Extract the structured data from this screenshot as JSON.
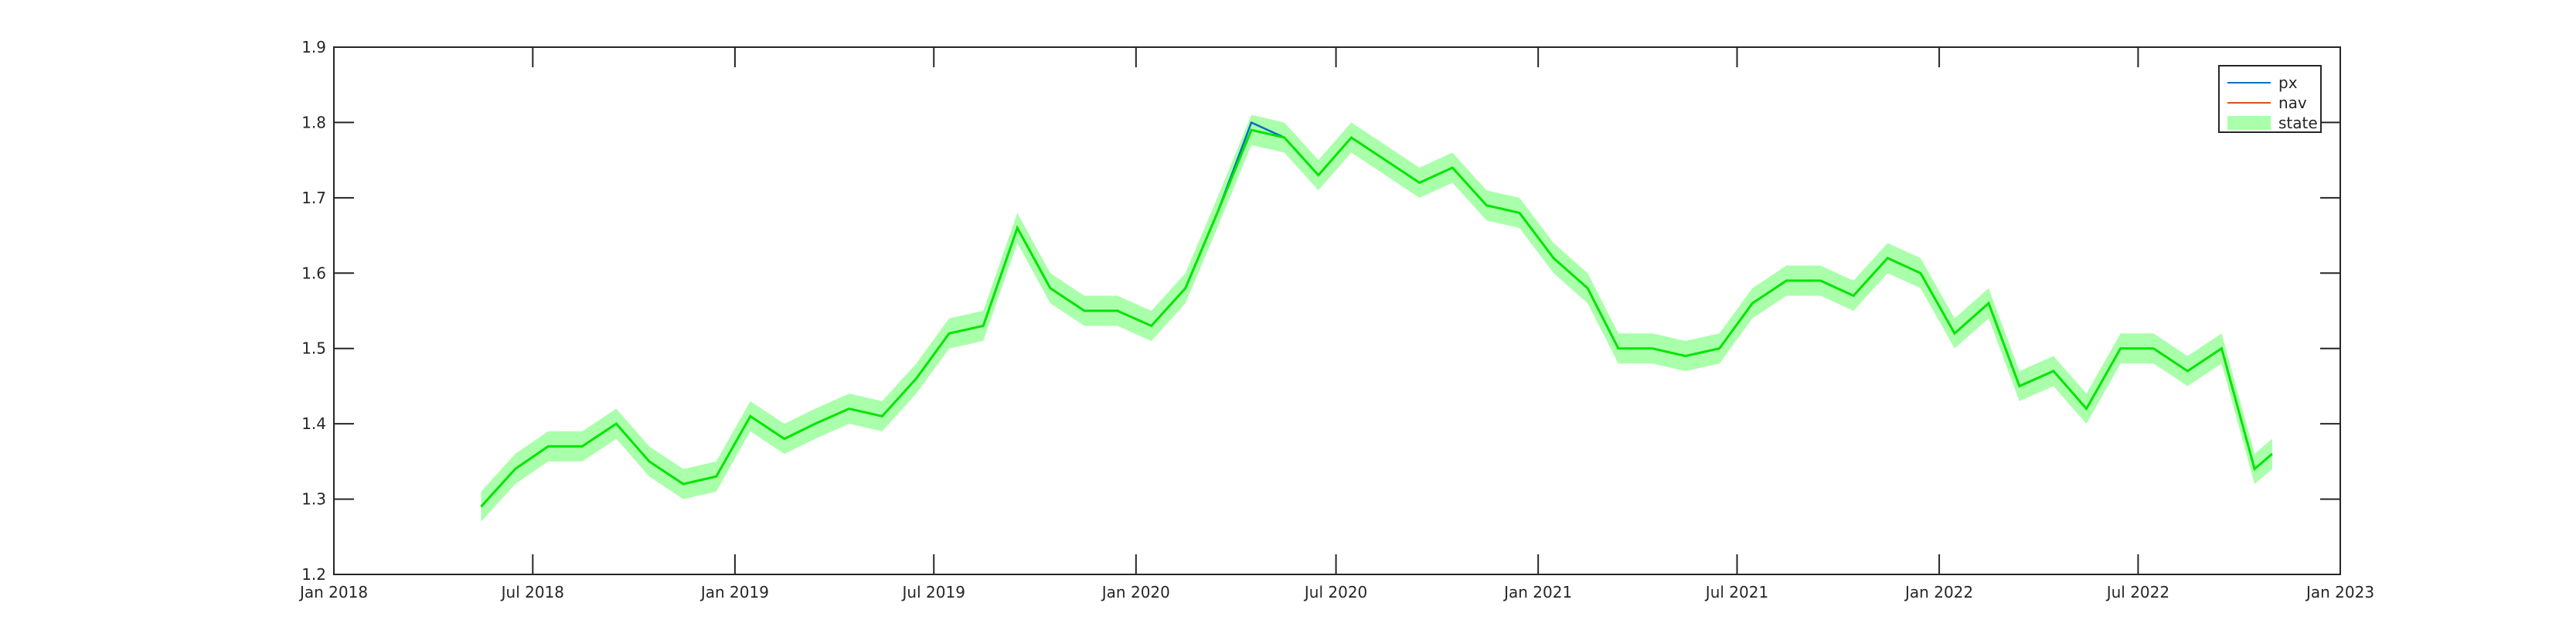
{
  "chart_data": {
    "type": "line",
    "title": "",
    "xlabel": "",
    "ylabel": "",
    "ylim": [
      1.2,
      1.9
    ],
    "xlim": [
      "2018-01-01",
      "2023-01-01"
    ],
    "yticks": [
      1.2,
      1.3,
      1.4,
      1.5,
      1.6,
      1.7,
      1.8,
      1.9
    ],
    "ytick_labels": [
      "1.2",
      "1.3",
      "1.4",
      "1.5",
      "1.6",
      "1.7",
      "1.8",
      "1.9"
    ],
    "xticks": [
      "2018-01-01",
      "2018-07-01",
      "2019-01-01",
      "2019-07-01",
      "2020-01-01",
      "2020-07-01",
      "2021-01-01",
      "2021-07-01",
      "2022-01-01",
      "2022-07-01",
      "2023-01-01"
    ],
    "xtick_labels": [
      "Jan 2018",
      "Jul 2018",
      "Jan 2019",
      "Jul 2019",
      "Jan 2020",
      "Jul 2020",
      "Jan 2021",
      "Jul 2021",
      "Jan 2022",
      "Jul 2022",
      "Jan 2023"
    ],
    "grid": false,
    "legend_position": "top-right",
    "x": [
      "2018-05-15",
      "2018-06-15",
      "2018-07-15",
      "2018-08-15",
      "2018-09-15",
      "2018-10-15",
      "2018-11-15",
      "2018-12-15",
      "2019-01-15",
      "2019-02-15",
      "2019-03-15",
      "2019-04-15",
      "2019-05-15",
      "2019-06-15",
      "2019-07-15",
      "2019-08-15",
      "2019-09-15",
      "2019-10-15",
      "2019-11-15",
      "2019-12-15",
      "2020-01-15",
      "2020-02-15",
      "2020-03-15",
      "2020-04-15",
      "2020-05-15",
      "2020-06-15",
      "2020-07-15",
      "2020-08-15",
      "2020-09-15",
      "2020-10-15",
      "2020-11-15",
      "2020-12-15",
      "2021-01-15",
      "2021-02-15",
      "2021-03-15",
      "2021-04-15",
      "2021-05-15",
      "2021-06-15",
      "2021-07-15",
      "2021-08-15",
      "2021-09-15",
      "2021-10-15",
      "2021-11-15",
      "2021-12-15",
      "2022-01-15",
      "2022-02-15",
      "2022-03-15",
      "2022-04-15",
      "2022-05-15",
      "2022-06-15",
      "2022-07-15",
      "2022-08-15",
      "2022-09-15",
      "2022-10-15",
      "2022-10-31"
    ],
    "series": [
      {
        "name": "px",
        "color": "#0072bd",
        "values": [
          1.29,
          1.34,
          1.37,
          1.37,
          1.4,
          1.35,
          1.32,
          1.33,
          1.41,
          1.38,
          1.4,
          1.42,
          1.41,
          1.46,
          1.52,
          1.53,
          1.66,
          1.58,
          1.55,
          1.55,
          1.53,
          1.58,
          1.68,
          1.8,
          1.78,
          1.73,
          1.78,
          1.75,
          1.72,
          1.74,
          1.69,
          1.68,
          1.62,
          1.58,
          1.5,
          1.5,
          1.49,
          1.5,
          1.56,
          1.59,
          1.59,
          1.57,
          1.62,
          1.6,
          1.52,
          1.56,
          1.45,
          1.47,
          1.42,
          1.5,
          1.5,
          1.47,
          1.5,
          1.34,
          1.36
        ]
      },
      {
        "name": "nav",
        "color": "#d95319",
        "values": [
          1.29,
          1.34,
          1.37,
          1.37,
          1.4,
          1.35,
          1.32,
          1.33,
          1.41,
          1.38,
          1.4,
          1.42,
          1.41,
          1.46,
          1.52,
          1.53,
          1.66,
          1.58,
          1.55,
          1.55,
          1.53,
          1.58,
          1.68,
          1.79,
          1.78,
          1.73,
          1.78,
          1.75,
          1.72,
          1.74,
          1.69,
          1.68,
          1.62,
          1.58,
          1.5,
          1.5,
          1.49,
          1.5,
          1.56,
          1.59,
          1.59,
          1.57,
          1.62,
          1.6,
          1.52,
          1.56,
          1.45,
          1.47,
          1.42,
          1.5,
          1.5,
          1.47,
          1.5,
          1.34,
          1.36
        ]
      },
      {
        "name": "state",
        "color": "#00e600",
        "band_color": "#aaffaa",
        "values": [
          1.29,
          1.34,
          1.37,
          1.37,
          1.4,
          1.35,
          1.32,
          1.33,
          1.41,
          1.38,
          1.4,
          1.42,
          1.41,
          1.46,
          1.52,
          1.53,
          1.66,
          1.58,
          1.55,
          1.55,
          1.53,
          1.58,
          1.68,
          1.79,
          1.78,
          1.73,
          1.78,
          1.75,
          1.72,
          1.74,
          1.69,
          1.68,
          1.62,
          1.58,
          1.5,
          1.5,
          1.49,
          1.5,
          1.56,
          1.59,
          1.59,
          1.57,
          1.62,
          1.6,
          1.52,
          1.56,
          1.45,
          1.47,
          1.42,
          1.5,
          1.5,
          1.47,
          1.5,
          1.34,
          1.36
        ],
        "band_halfwidth": 0.02
      }
    ]
  }
}
